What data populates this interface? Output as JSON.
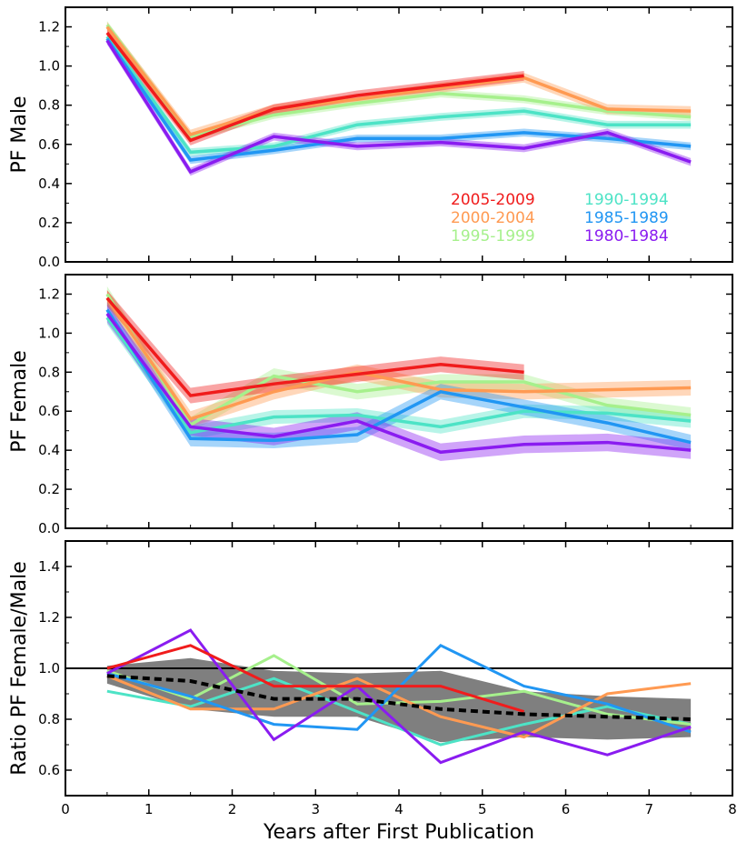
{
  "chart_data": [
    {
      "type": "line",
      "panel": "top",
      "ylabel": "PF Male",
      "xlabel": "",
      "xlim": [
        0,
        8
      ],
      "ylim": [
        0,
        1.3
      ],
      "yticks": [
        "0.0",
        "0.2",
        "0.4",
        "0.6",
        "0.8",
        "1.0",
        "1.2"
      ],
      "yticks_values": [
        0.0,
        0.2,
        0.4,
        0.6,
        0.8,
        1.0,
        1.2
      ],
      "legend": {
        "placement": "lower-right",
        "entries": [
          "2005-2009",
          "2000-2004",
          "1995-1999",
          "1990-1994",
          "1985-1989",
          "1980-1984"
        ]
      },
      "series": [
        {
          "name": "1995-1999",
          "color": "#a6f08c",
          "x": [
            0.5,
            1.5,
            2.5,
            3.5,
            4.5,
            5.5,
            6.5,
            7.5
          ],
          "y": [
            1.21,
            0.64,
            0.75,
            0.81,
            0.86,
            0.83,
            0.77,
            0.74
          ],
          "band": 0.02
        },
        {
          "name": "2000-2004",
          "color": "#ff9a52",
          "x": [
            0.5,
            1.5,
            2.5,
            3.5,
            4.5,
            5.5,
            6.5,
            7.5
          ],
          "y": [
            1.2,
            0.65,
            0.78,
            0.83,
            0.89,
            0.94,
            0.78,
            0.77
          ],
          "band": 0.025
        },
        {
          "name": "1990-1994",
          "color": "#4de3c6",
          "x": [
            0.5,
            1.5,
            2.5,
            3.5,
            4.5,
            5.5,
            6.5,
            7.5
          ],
          "y": [
            1.15,
            0.56,
            0.59,
            0.7,
            0.74,
            0.77,
            0.7,
            0.7
          ],
          "band": 0.02
        },
        {
          "name": "1985-1989",
          "color": "#2196f3",
          "x": [
            0.5,
            1.5,
            2.5,
            3.5,
            4.5,
            5.5,
            6.5,
            7.5
          ],
          "y": [
            1.14,
            0.52,
            0.57,
            0.63,
            0.63,
            0.66,
            0.63,
            0.59
          ],
          "band": 0.02
        },
        {
          "name": "1980-1984",
          "color": "#8a1cf0",
          "x": [
            0.5,
            1.5,
            2.5,
            3.5,
            4.5,
            5.5,
            6.5,
            7.5
          ],
          "y": [
            1.13,
            0.46,
            0.64,
            0.59,
            0.61,
            0.58,
            0.66,
            0.51
          ],
          "band": 0.02
        },
        {
          "name": "2005-2009",
          "color": "#f01c1c",
          "x": [
            0.5,
            1.5,
            2.5,
            3.5,
            4.5,
            5.5
          ],
          "y": [
            1.17,
            0.62,
            0.78,
            0.85,
            0.9,
            0.95
          ],
          "band": 0.025
        }
      ]
    },
    {
      "type": "line",
      "panel": "middle",
      "ylabel": "PF Female",
      "xlabel": "",
      "xlim": [
        0,
        8
      ],
      "ylim": [
        0,
        1.3
      ],
      "yticks": [
        "0.0",
        "0.2",
        "0.4",
        "0.6",
        "0.8",
        "1.0",
        "1.2"
      ],
      "yticks_values": [
        0.0,
        0.2,
        0.4,
        0.6,
        0.8,
        1.0,
        1.2
      ],
      "series": [
        {
          "name": "1995-1999",
          "color": "#a6f08c",
          "x": [
            0.5,
            1.5,
            2.5,
            3.5,
            4.5,
            5.5,
            6.5,
            7.5
          ],
          "y": [
            1.2,
            0.53,
            0.78,
            0.7,
            0.75,
            0.75,
            0.63,
            0.58
          ],
          "band": 0.04
        },
        {
          "name": "2000-2004",
          "color": "#ff9a52",
          "x": [
            0.5,
            1.5,
            2.5,
            3.5,
            4.5,
            5.5,
            6.5,
            7.5
          ],
          "y": [
            1.18,
            0.56,
            0.7,
            0.8,
            0.71,
            0.7,
            0.71,
            0.72
          ],
          "band": 0.04
        },
        {
          "name": "1990-1994",
          "color": "#4de3c6",
          "x": [
            0.5,
            1.5,
            2.5,
            3.5,
            4.5,
            5.5,
            6.5,
            7.5
          ],
          "y": [
            1.08,
            0.49,
            0.57,
            0.58,
            0.52,
            0.6,
            0.59,
            0.55
          ],
          "band": 0.035
        },
        {
          "name": "1985-1989",
          "color": "#2196f3",
          "x": [
            0.5,
            1.5,
            2.5,
            3.5,
            4.5,
            5.5,
            6.5,
            7.5
          ],
          "y": [
            1.12,
            0.46,
            0.45,
            0.48,
            0.7,
            0.62,
            0.54,
            0.44
          ],
          "band": 0.04
        },
        {
          "name": "1980-1984",
          "color": "#8a1cf0",
          "x": [
            0.5,
            1.5,
            2.5,
            3.5,
            4.5,
            5.5,
            6.5,
            7.5
          ],
          "y": [
            1.1,
            0.52,
            0.47,
            0.55,
            0.39,
            0.43,
            0.44,
            0.4
          ],
          "band": 0.045
        },
        {
          "name": "2005-2009",
          "color": "#f01c1c",
          "x": [
            0.5,
            1.5,
            2.5,
            3.5,
            4.5,
            5.5
          ],
          "y": [
            1.18,
            0.68,
            0.74,
            0.79,
            0.84,
            0.8
          ],
          "band": 0.04
        }
      ]
    },
    {
      "type": "line",
      "panel": "bottom",
      "ylabel": "Ratio PF Female/Male",
      "xlabel": "Years after First Publication",
      "xlim": [
        0,
        8
      ],
      "ylim": [
        0.5,
        1.5
      ],
      "xticks": [
        "0",
        "1",
        "2",
        "3",
        "4",
        "5",
        "6",
        "7",
        "8"
      ],
      "xticks_values": [
        0,
        1,
        2,
        3,
        4,
        5,
        6,
        7,
        8
      ],
      "yticks": [
        "0.6",
        "0.8",
        "1.0",
        "1.2",
        "1.4"
      ],
      "yticks_values": [
        0.6,
        0.8,
        1.0,
        1.2,
        1.4
      ],
      "reference_line": 1.0,
      "mean": {
        "color": "#000000",
        "x": [
          0.5,
          1.5,
          2.5,
          3.5,
          4.5,
          5.5,
          6.5,
          7.5
        ],
        "y": [
          0.97,
          0.95,
          0.88,
          0.88,
          0.84,
          0.82,
          0.81,
          0.8
        ],
        "band_lower": [
          0.94,
          0.84,
          0.81,
          0.81,
          0.71,
          0.73,
          0.72,
          0.73
        ],
        "band_upper": [
          1.01,
          1.04,
          0.99,
          0.98,
          0.99,
          0.91,
          0.89,
          0.88
        ],
        "band_color": "#7f7f7f"
      },
      "series": [
        {
          "name": "1990-1994",
          "color": "#4de3c6",
          "x": [
            0.5,
            1.5,
            2.5,
            3.5,
            4.5,
            5.5,
            6.5,
            7.5
          ],
          "y": [
            0.91,
            0.85,
            0.96,
            0.83,
            0.7,
            0.78,
            0.85,
            0.78
          ]
        },
        {
          "name": "1995-1999",
          "color": "#a6f08c",
          "x": [
            0.5,
            1.5,
            2.5,
            3.5,
            4.5,
            5.5,
            6.5,
            7.5
          ],
          "y": [
            0.99,
            0.88,
            1.05,
            0.86,
            0.87,
            0.91,
            0.82,
            0.78
          ]
        },
        {
          "name": "2000-2004",
          "color": "#ff9a52",
          "x": [
            0.5,
            1.5,
            2.5,
            3.5,
            4.5,
            5.5,
            6.5,
            7.5
          ],
          "y": [
            0.97,
            0.84,
            0.84,
            0.96,
            0.81,
            0.73,
            0.9,
            0.94
          ]
        },
        {
          "name": "1985-1989",
          "color": "#2196f3",
          "x": [
            0.5,
            1.5,
            2.5,
            3.5,
            4.5,
            5.5,
            6.5,
            7.5
          ],
          "y": [
            0.98,
            0.89,
            0.78,
            0.76,
            1.09,
            0.93,
            0.86,
            0.75
          ]
        },
        {
          "name": "1980-1984",
          "color": "#8a1cf0",
          "x": [
            0.5,
            1.5,
            2.5,
            3.5,
            4.5,
            5.5,
            6.5,
            7.5
          ],
          "y": [
            0.98,
            1.15,
            0.72,
            0.93,
            0.63,
            0.75,
            0.66,
            0.77
          ]
        },
        {
          "name": "2005-2009",
          "color": "#f01c1c",
          "x": [
            0.5,
            1.5,
            2.5,
            3.5,
            4.5,
            5.5
          ],
          "y": [
            1.0,
            1.09,
            0.93,
            0.93,
            0.93,
            0.83
          ]
        }
      ]
    }
  ]
}
